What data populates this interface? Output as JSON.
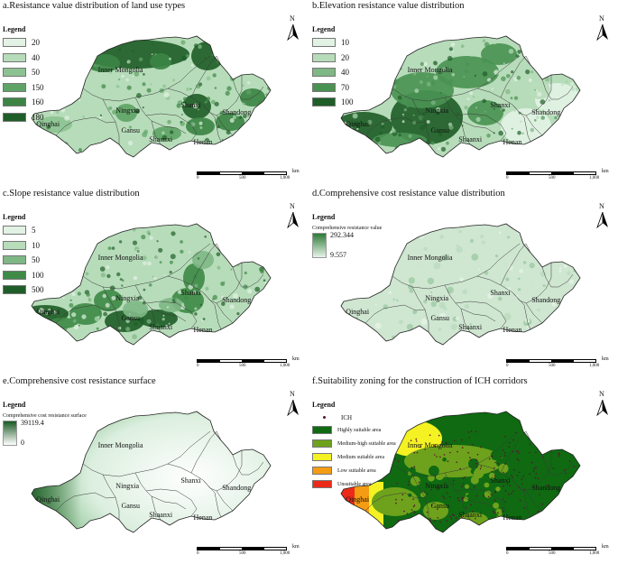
{
  "panels": [
    {
      "id": "a",
      "title": "a.Resistance value distribution of land use types",
      "legend_title": "Legend",
      "legend_type": "classes",
      "classes": [
        {
          "label": "20",
          "color": "#e2f2e4"
        },
        {
          "label": "40",
          "color": "#b7dcba"
        },
        {
          "label": "50",
          "color": "#8cc291"
        },
        {
          "label": "150",
          "color": "#5fa466"
        },
        {
          "label": "160",
          "color": "#3c8444"
        },
        {
          "label": "180",
          "color": "#1f5e28"
        }
      ]
    },
    {
      "id": "b",
      "title": "b.Elevation resistance value distribution",
      "legend_title": "Legend",
      "legend_type": "classes",
      "classes": [
        {
          "label": "10",
          "color": "#e2f2e4"
        },
        {
          "label": "20",
          "color": "#b7dcba"
        },
        {
          "label": "40",
          "color": "#7fb785"
        },
        {
          "label": "70",
          "color": "#4a9252"
        },
        {
          "label": "100",
          "color": "#1f5e28"
        }
      ]
    },
    {
      "id": "c",
      "title": "c.Slope resistance value distribution",
      "legend_title": "Legend",
      "legend_type": "classes",
      "classes": [
        {
          "label": "5",
          "color": "#e2f2e4"
        },
        {
          "label": "10",
          "color": "#b7dcba"
        },
        {
          "label": "50",
          "color": "#7fb785"
        },
        {
          "label": "100",
          "color": "#3f8a47"
        },
        {
          "label": "500",
          "color": "#1f5e28"
        }
      ]
    },
    {
      "id": "d",
      "title": "d.Comprehensive cost resistance value distribution",
      "legend_title": "Legend",
      "legend_type": "ramp",
      "ramp_caption": "Comprehensive resistance value",
      "ramp_max": "292.344",
      "ramp_min": "9.557",
      "ramp_colors": [
        "#2e7a37",
        "#e8f4e9"
      ]
    },
    {
      "id": "e",
      "title": "e.Comprehensive cost resistance surface",
      "legend_title": "Legend",
      "legend_type": "ramp",
      "ramp_caption": "Comprehensive cost resistance surface",
      "ramp_max": "39119.4",
      "ramp_min": "0",
      "ramp_colors": [
        "#1a5a24",
        "#ffffff"
      ]
    },
    {
      "id": "f",
      "title": "f.Suitability zoning for the construction of ICH corridors",
      "legend_title": "Legend",
      "legend_type": "suitability",
      "ich_label": "ICH",
      "ich_color": "#5a1230",
      "classes": [
        {
          "label": "Highly suitable area",
          "color": "#0f6a12"
        },
        {
          "label": "Medium-high suitable area",
          "color": "#6ea21c"
        },
        {
          "label": "Medium suitable area",
          "color": "#f4f223"
        },
        {
          "label": "Low suitable area",
          "color": "#f49c14"
        },
        {
          "label": "Unsuitable area",
          "color": "#ec2a1a"
        }
      ]
    }
  ],
  "provinces": [
    "Qinghai",
    "Gansu",
    "Ningxia",
    "Inner Mongolia",
    "Shaanxi",
    "Shanxi",
    "Henan",
    "Shandong"
  ],
  "north_label": "N",
  "scale": {
    "ticks": [
      "0",
      "500",
      "1,000"
    ],
    "unit": "km"
  }
}
